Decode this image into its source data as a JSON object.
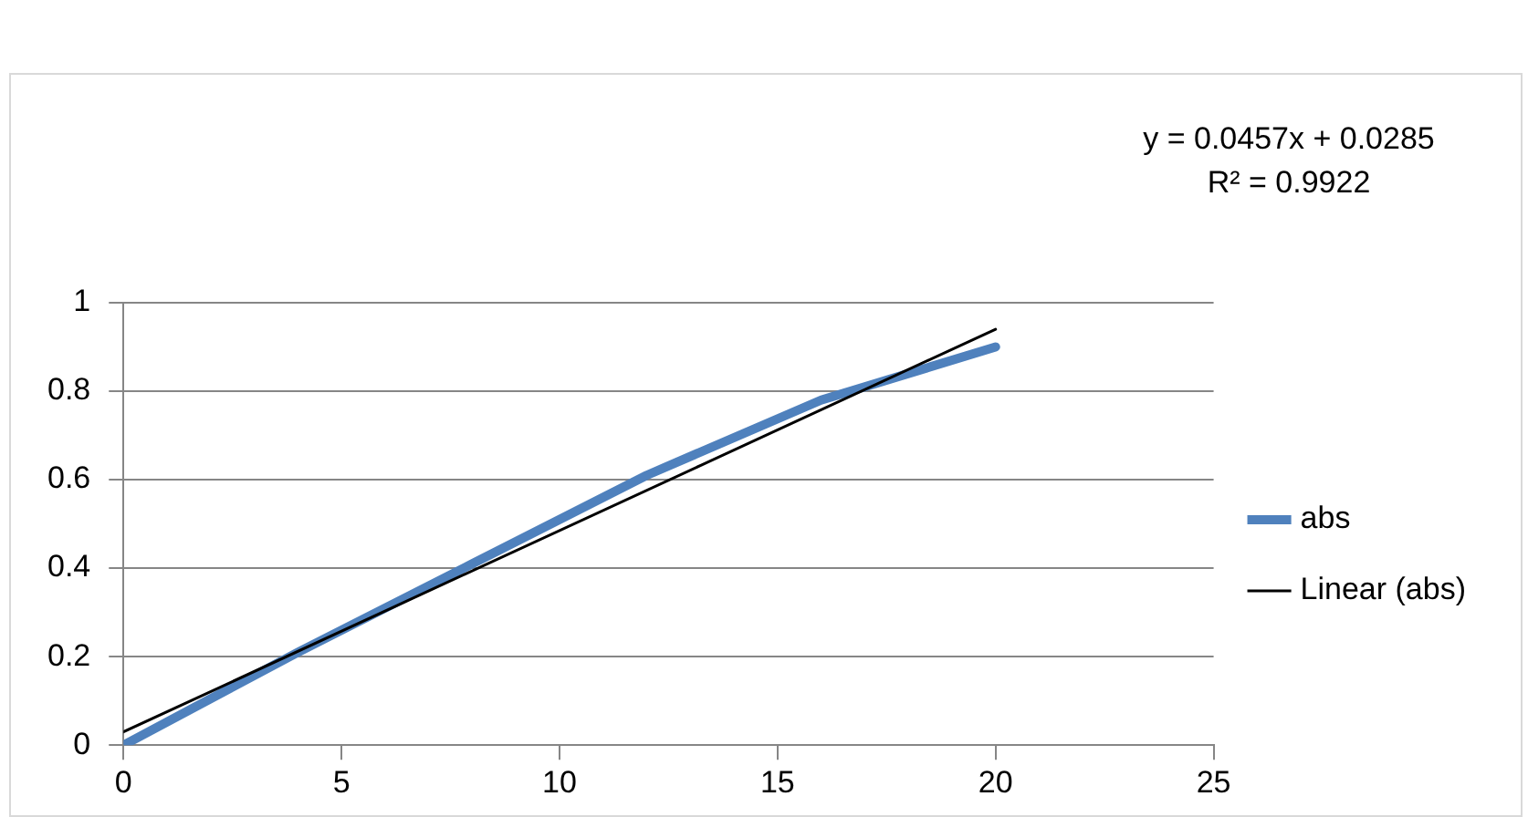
{
  "chart_data": {
    "type": "line",
    "x": [
      0,
      4,
      8,
      12,
      16,
      20
    ],
    "series": [
      {
        "name": "abs",
        "color": "#4f81bd",
        "values": [
          0,
          0.21,
          0.41,
          0.61,
          0.78,
          0.9
        ]
      },
      {
        "name": "Linear (abs)",
        "type": "line",
        "color": "#000000",
        "x": [
          0,
          20
        ],
        "values": [
          0.03,
          0.94
        ]
      }
    ],
    "annotations": [
      "y = 0.0457x + 0.0285",
      "R² = 0.9922"
    ],
    "xlim": [
      0,
      25
    ],
    "xticks": [
      0,
      5,
      10,
      15,
      20,
      25
    ],
    "ylim": [
      0,
      1
    ],
    "yticks": [
      0,
      0.2,
      0.4,
      0.6,
      0.8,
      1
    ],
    "grid": "y",
    "legend": "right",
    "marker": "none"
  }
}
